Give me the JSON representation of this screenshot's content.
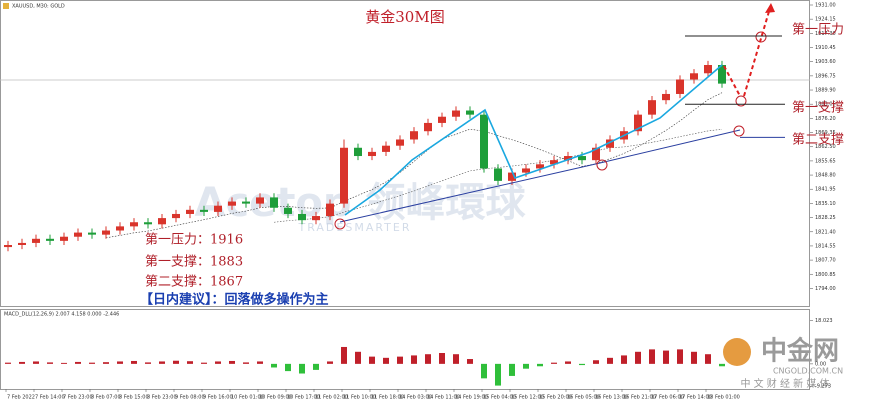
{
  "chart_data": {
    "type": "candlestick",
    "title": "黄金30M图",
    "symbol_label": "XAUUSD, M30: GOLD",
    "candles": [
      [
        1814,
        1817,
        1812,
        1815
      ],
      [
        1815,
        1818,
        1813,
        1816
      ],
      [
        1816,
        1820,
        1814,
        1818
      ],
      [
        1818,
        1820,
        1815,
        1817
      ],
      [
        1817,
        1821,
        1815,
        1819
      ],
      [
        1819,
        1823,
        1817,
        1821
      ],
      [
        1821,
        1823,
        1818,
        1820
      ],
      [
        1820,
        1824,
        1818,
        1822
      ],
      [
        1822,
        1826,
        1820,
        1824
      ],
      [
        1824,
        1828,
        1822,
        1826
      ],
      [
        1826,
        1828,
        1823,
        1825
      ],
      [
        1825,
        1830,
        1823,
        1828
      ],
      [
        1828,
        1832,
        1826,
        1830
      ],
      [
        1830,
        1834,
        1828,
        1832
      ],
      [
        1832,
        1834,
        1829,
        1831
      ],
      [
        1831,
        1836,
        1829,
        1834
      ],
      [
        1834,
        1838,
        1832,
        1836
      ],
      [
        1836,
        1838,
        1833,
        1835
      ],
      [
        1835,
        1840,
        1833,
        1838
      ],
      [
        1838,
        1840,
        1831,
        1833
      ],
      [
        1833,
        1835,
        1828,
        1830
      ],
      [
        1830,
        1832,
        1825,
        1827
      ],
      [
        1827,
        1831,
        1825,
        1829
      ],
      [
        1829,
        1837,
        1827,
        1835
      ],
      [
        1835,
        1866,
        1833,
        1862
      ],
      [
        1862,
        1864,
        1856,
        1858
      ],
      [
        1858,
        1862,
        1856,
        1860
      ],
      [
        1860,
        1865,
        1858,
        1863
      ],
      [
        1863,
        1868,
        1861,
        1866
      ],
      [
        1866,
        1872,
        1864,
        1870
      ],
      [
        1870,
        1876,
        1868,
        1874
      ],
      [
        1874,
        1879,
        1872,
        1877
      ],
      [
        1877,
        1882,
        1875,
        1880
      ],
      [
        1880,
        1882,
        1876,
        1878
      ],
      [
        1878,
        1880,
        1850,
        1852
      ],
      [
        1852,
        1854,
        1844,
        1846
      ],
      [
        1846,
        1852,
        1844,
        1850
      ],
      [
        1850,
        1854,
        1848,
        1852
      ],
      [
        1852,
        1856,
        1850,
        1854
      ],
      [
        1854,
        1858,
        1852,
        1856
      ],
      [
        1856,
        1860,
        1854,
        1858
      ],
      [
        1858,
        1860,
        1854,
        1856
      ],
      [
        1856,
        1864,
        1854,
        1862
      ],
      [
        1862,
        1868,
        1860,
        1866
      ],
      [
        1866,
        1872,
        1864,
        1870
      ],
      [
        1870,
        1880,
        1868,
        1878
      ],
      [
        1878,
        1887,
        1876,
        1885
      ],
      [
        1885,
        1890,
        1883,
        1888
      ],
      [
        1888,
        1897,
        1886,
        1895
      ],
      [
        1895,
        1900,
        1893,
        1898
      ],
      [
        1898,
        1904,
        1896,
        1902
      ],
      [
        1902,
        1904,
        1891,
        1893
      ]
    ],
    "up_color": "#d9342b",
    "down_color": "#1e9e3a",
    "ylim": [
      1786,
      1931
    ],
    "yticks": [
      {
        "value": 1931,
        "label": "1931.00"
      },
      {
        "value": 1924.15,
        "label": "1924.15"
      },
      {
        "value": 1917.3,
        "label": "1917.30"
      },
      {
        "value": 1910.45,
        "label": "1910.45"
      },
      {
        "value": 1903.6,
        "label": "1903.60"
      },
      {
        "value": 1896.75,
        "label": "1896.75"
      },
      {
        "value": 1889.9,
        "label": "1889.90"
      },
      {
        "value": 1883.05,
        "label": "1883.05"
      },
      {
        "value": 1876.2,
        "label": "1876.20"
      },
      {
        "value": 1869.35,
        "label": "1869.35"
      },
      {
        "value": 1862.5,
        "label": "1862.50"
      },
      {
        "value": 1855.65,
        "label": "1855.65"
      },
      {
        "value": 1848.8,
        "label": "1848.80"
      },
      {
        "value": 1841.95,
        "label": "1841.95"
      },
      {
        "value": 1835.1,
        "label": "1835.10"
      },
      {
        "value": 1828.25,
        "label": "1828.25"
      },
      {
        "value": 1821.4,
        "label": "1821.40"
      },
      {
        "value": 1814.55,
        "label": "1814.55"
      },
      {
        "value": 1807.7,
        "label": "1807.70"
      },
      {
        "value": 1800.85,
        "label": "1800.85"
      },
      {
        "value": 1794,
        "label": "1794.00"
      }
    ],
    "xtick_labels": [
      "7 Feb 2022",
      "7 Feb 14:00",
      "7 Feb 23:00",
      "8 Feb 07:00",
      "8 Feb 15:00",
      "8 Feb 23:00",
      "9 Feb 08:00",
      "9 Feb 16:00",
      "10 Feb 01:00",
      "10 Feb 09:00",
      "10 Feb 17:00",
      "11 Feb 02:00",
      "11 Feb 10:00",
      "11 Feb 18:00",
      "14 Feb 03:00",
      "14 Feb 11:00",
      "14 Feb 19:00",
      "15 Feb 04:00",
      "15 Feb 12:00",
      "15 Feb 20:00",
      "16 Feb 05:00",
      "16 Feb 13:00",
      "16 Feb 21:00",
      "17 Feb 06:00",
      "17 Feb 14:00",
      "18 Feb 01:00"
    ],
    "levels": {
      "names": [
        "第一压力",
        "第一支撑",
        "第二支撑"
      ],
      "values": [
        1916,
        1883,
        1867
      ],
      "value_labels": [
        "第一压力：1916",
        "第一支撑：1883",
        "第二支撑：1867"
      ]
    },
    "advice": "【日内建议】：回落做多操作为主",
    "macd": {
      "label": "MACD_DLL(12,26,9) 2.007 4.158 0.000 -2.446",
      "values": [
        0.5,
        0.8,
        1,
        0.6,
        0.4,
        0.8,
        0.5,
        0.7,
        1,
        1.2,
        0.6,
        1,
        1.3,
        1.1,
        0.5,
        1,
        1.2,
        0.6,
        1,
        -1.5,
        -3,
        -4,
        -2.5,
        1,
        7,
        5,
        3,
        2.5,
        3,
        3.5,
        4,
        4.5,
        4,
        2,
        -6,
        -9,
        -5,
        -2,
        -1,
        0.5,
        1,
        -0.5,
        1.5,
        2.5,
        3.5,
        5,
        6,
        5.5,
        6,
        5,
        4,
        -1
      ],
      "ylim": [
        -10,
        19
      ],
      "yticks": [
        18.023,
        {
          "value": 0,
          "label": "0.00"
        },
        -9.273
      ],
      "up_color": "#c0202a",
      "down_color": "#2fbf3a"
    },
    "watermark": {
      "brand": "Acetop 领峰環球",
      "sub": "TRADESMARTER"
    },
    "logo": {
      "name": "中金网",
      "url": "CNGOLD.COM.CN",
      "slogan": "中 文 财 经 新 媒 体"
    }
  }
}
